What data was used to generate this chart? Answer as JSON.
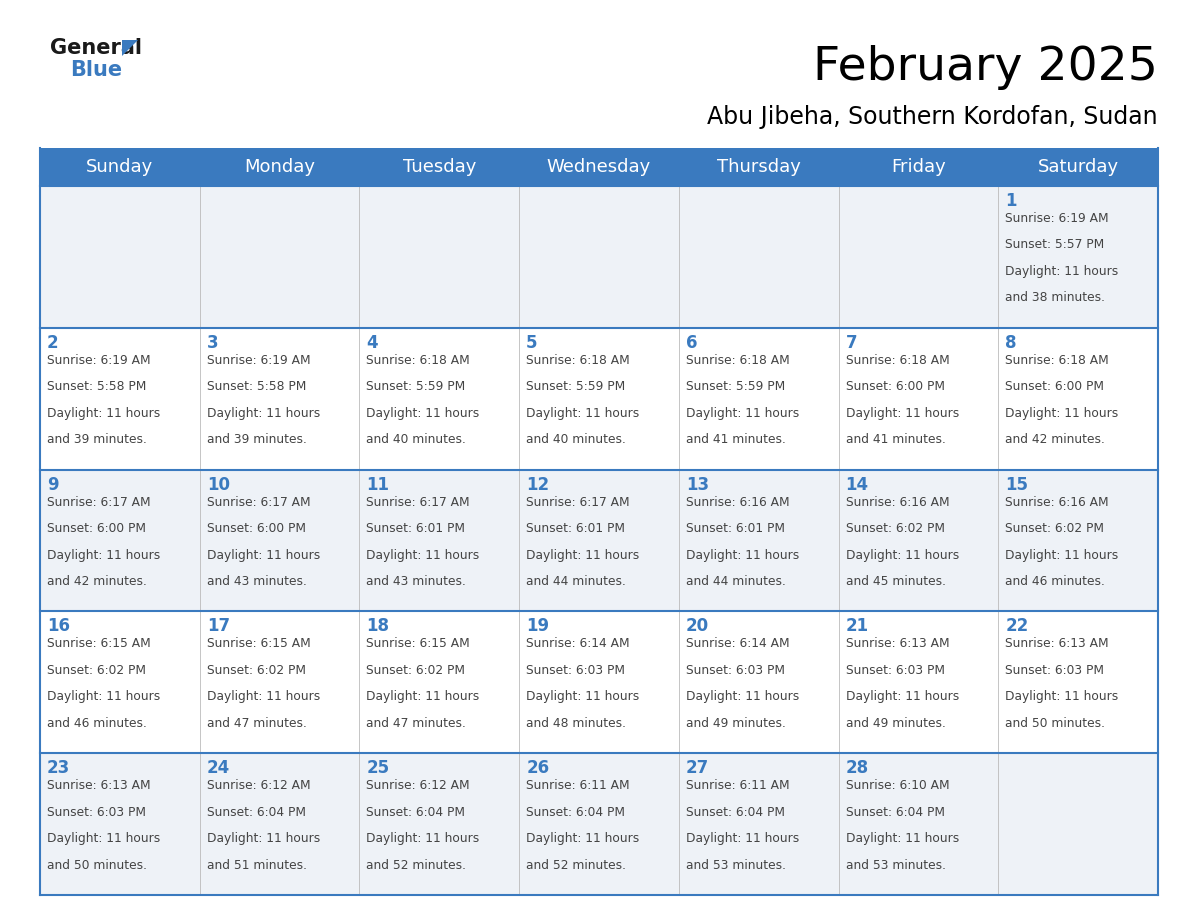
{
  "title": "February 2025",
  "subtitle": "Abu Jibeha, Southern Kordofan, Sudan",
  "days_of_week": [
    "Sunday",
    "Monday",
    "Tuesday",
    "Wednesday",
    "Thursday",
    "Friday",
    "Saturday"
  ],
  "header_bg": "#3a7abf",
  "header_text": "#ffffff",
  "cell_bg_even": "#eef2f7",
  "cell_bg_odd": "#ffffff",
  "border_color": "#3a7abf",
  "day_number_color": "#3a7abf",
  "cell_text_color": "#444444",
  "logo_general_color": "#1a1a1a",
  "logo_blue_color": "#3a7abf",
  "logo_triangle_color": "#3a7abf",
  "calendar": [
    [
      null,
      null,
      null,
      null,
      null,
      null,
      {
        "day": 1,
        "sunrise": "6:19 AM",
        "sunset": "5:57 PM",
        "daylight": "11 hours and 38 minutes."
      }
    ],
    [
      {
        "day": 2,
        "sunrise": "6:19 AM",
        "sunset": "5:58 PM",
        "daylight": "11 hours and 39 minutes."
      },
      {
        "day": 3,
        "sunrise": "6:19 AM",
        "sunset": "5:58 PM",
        "daylight": "11 hours and 39 minutes."
      },
      {
        "day": 4,
        "sunrise": "6:18 AM",
        "sunset": "5:59 PM",
        "daylight": "11 hours and 40 minutes."
      },
      {
        "day": 5,
        "sunrise": "6:18 AM",
        "sunset": "5:59 PM",
        "daylight": "11 hours and 40 minutes."
      },
      {
        "day": 6,
        "sunrise": "6:18 AM",
        "sunset": "5:59 PM",
        "daylight": "11 hours and 41 minutes."
      },
      {
        "day": 7,
        "sunrise": "6:18 AM",
        "sunset": "6:00 PM",
        "daylight": "11 hours and 41 minutes."
      },
      {
        "day": 8,
        "sunrise": "6:18 AM",
        "sunset": "6:00 PM",
        "daylight": "11 hours and 42 minutes."
      }
    ],
    [
      {
        "day": 9,
        "sunrise": "6:17 AM",
        "sunset": "6:00 PM",
        "daylight": "11 hours and 42 minutes."
      },
      {
        "day": 10,
        "sunrise": "6:17 AM",
        "sunset": "6:00 PM",
        "daylight": "11 hours and 43 minutes."
      },
      {
        "day": 11,
        "sunrise": "6:17 AM",
        "sunset": "6:01 PM",
        "daylight": "11 hours and 43 minutes."
      },
      {
        "day": 12,
        "sunrise": "6:17 AM",
        "sunset": "6:01 PM",
        "daylight": "11 hours and 44 minutes."
      },
      {
        "day": 13,
        "sunrise": "6:16 AM",
        "sunset": "6:01 PM",
        "daylight": "11 hours and 44 minutes."
      },
      {
        "day": 14,
        "sunrise": "6:16 AM",
        "sunset": "6:02 PM",
        "daylight": "11 hours and 45 minutes."
      },
      {
        "day": 15,
        "sunrise": "6:16 AM",
        "sunset": "6:02 PM",
        "daylight": "11 hours and 46 minutes."
      }
    ],
    [
      {
        "day": 16,
        "sunrise": "6:15 AM",
        "sunset": "6:02 PM",
        "daylight": "11 hours and 46 minutes."
      },
      {
        "day": 17,
        "sunrise": "6:15 AM",
        "sunset": "6:02 PM",
        "daylight": "11 hours and 47 minutes."
      },
      {
        "day": 18,
        "sunrise": "6:15 AM",
        "sunset": "6:02 PM",
        "daylight": "11 hours and 47 minutes."
      },
      {
        "day": 19,
        "sunrise": "6:14 AM",
        "sunset": "6:03 PM",
        "daylight": "11 hours and 48 minutes."
      },
      {
        "day": 20,
        "sunrise": "6:14 AM",
        "sunset": "6:03 PM",
        "daylight": "11 hours and 49 minutes."
      },
      {
        "day": 21,
        "sunrise": "6:13 AM",
        "sunset": "6:03 PM",
        "daylight": "11 hours and 49 minutes."
      },
      {
        "day": 22,
        "sunrise": "6:13 AM",
        "sunset": "6:03 PM",
        "daylight": "11 hours and 50 minutes."
      }
    ],
    [
      {
        "day": 23,
        "sunrise": "6:13 AM",
        "sunset": "6:03 PM",
        "daylight": "11 hours and 50 minutes."
      },
      {
        "day": 24,
        "sunrise": "6:12 AM",
        "sunset": "6:04 PM",
        "daylight": "11 hours and 51 minutes."
      },
      {
        "day": 25,
        "sunrise": "6:12 AM",
        "sunset": "6:04 PM",
        "daylight": "11 hours and 52 minutes."
      },
      {
        "day": 26,
        "sunrise": "6:11 AM",
        "sunset": "6:04 PM",
        "daylight": "11 hours and 52 minutes."
      },
      {
        "day": 27,
        "sunrise": "6:11 AM",
        "sunset": "6:04 PM",
        "daylight": "11 hours and 53 minutes."
      },
      {
        "day": 28,
        "sunrise": "6:10 AM",
        "sunset": "6:04 PM",
        "daylight": "11 hours and 53 minutes."
      },
      null
    ]
  ]
}
